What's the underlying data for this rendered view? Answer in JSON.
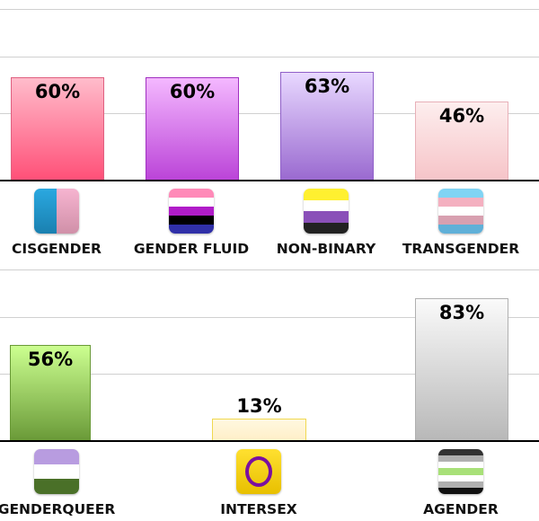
{
  "chart_data": [
    {
      "type": "bar",
      "title": "",
      "xlabel": "",
      "ylabel": "",
      "ylim": [
        0,
        100
      ],
      "grid": true,
      "categories": [
        "CISGENDER",
        "GENDER FLUID",
        "NON-BINARY",
        "TRANSGENDER"
      ],
      "values": [
        60,
        60,
        63,
        46
      ],
      "value_labels": [
        "60%",
        "60%",
        "63%",
        "46%"
      ],
      "colors": [
        [
          "#ffbccb",
          "#ff5078",
          "#e06080"
        ],
        [
          "#f4b8ff",
          "#bb44d8",
          "#a030c0"
        ],
        [
          "#e8d8ff",
          "#9a6ad0",
          "#9060c8"
        ],
        [
          "#fdeeee",
          "#f6c4c8",
          "#e8b0b8"
        ]
      ]
    },
    {
      "type": "bar",
      "title": "",
      "xlabel": "",
      "ylabel": "",
      "ylim": [
        0,
        100
      ],
      "grid": true,
      "categories": [
        "GENDERQUEER",
        "INTERSEX",
        "AGENDER"
      ],
      "values": [
        56,
        13,
        83
      ],
      "value_labels": [
        "56%",
        "13%",
        "83%"
      ],
      "colors": [
        [
          "#ccff90",
          "#6a9a38",
          "#6a9a38"
        ],
        [
          "#fff8e0",
          "#ffefc8",
          "#f0d850"
        ],
        [
          "#fafafa",
          "#b8b8b8",
          "#b0b0b0"
        ]
      ]
    }
  ]
}
